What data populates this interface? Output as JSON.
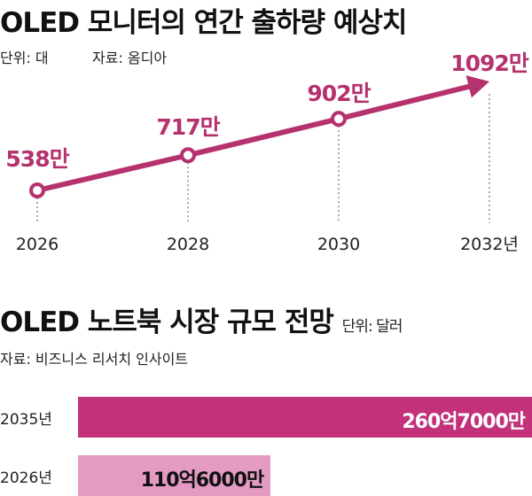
{
  "chart_data": [
    {
      "type": "line",
      "title": "OLED 모니터의 연간 출하량 예상치",
      "unit_label": "단위: 대",
      "source": "자료: 옴디아",
      "x": [
        "2026",
        "2028",
        "2030",
        "2032년"
      ],
      "values": [
        538,
        717,
        902,
        1092
      ],
      "data_labels": [
        "538만",
        "717만",
        "902만",
        "1092만"
      ],
      "color": "#b5326e"
    },
    {
      "type": "bar",
      "orientation": "horizontal",
      "title": "OLED 노트북 시장 규모 전망",
      "unit_label": "단위: 달러",
      "source": "자료: 비즈니스 리서치 인사이트",
      "categories": [
        "2035년",
        "2026년"
      ],
      "values": [
        26070000000,
        11060000000
      ],
      "data_labels": [
        "260억7000만",
        "110억6000만"
      ],
      "colors": [
        "#c2317a",
        "#e39bc4"
      ]
    }
  ]
}
